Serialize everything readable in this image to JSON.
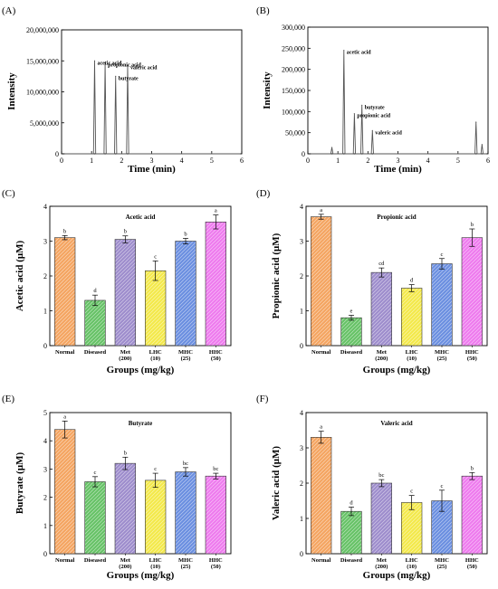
{
  "figure": {
    "panels": [
      {
        "letter": "(A)",
        "chart_data": {
          "type": "line",
          "xlabel": "Time (min)",
          "ylabel": "Intensity",
          "xlim": [
            0,
            6
          ],
          "ylim": [
            0,
            20000000
          ],
          "xticks": [
            0,
            1,
            2,
            3,
            4,
            5,
            6
          ],
          "yticks": [
            0,
            5000000,
            10000000,
            15000000,
            20000000
          ],
          "ytick_labels": [
            "0",
            "5,000,000",
            "10,000,000",
            "15,000,000",
            "20,000,000"
          ],
          "series": [
            {
              "peaks": [
                {
                  "x": 1.1,
                  "y": 15000000,
                  "label": "acetic acid"
                },
                {
                  "x": 1.45,
                  "y": 14700000,
                  "label": "propionic acid"
                },
                {
                  "x": 1.8,
                  "y": 12500000,
                  "label": "butyrate"
                },
                {
                  "x": 2.2,
                  "y": 14200000,
                  "label": "valeric acid"
                }
              ]
            }
          ]
        }
      },
      {
        "letter": "(B)",
        "chart_data": {
          "type": "line",
          "xlabel": "Time (min)",
          "ylabel": "Intensity",
          "xlim": [
            0,
            6
          ],
          "ylim": [
            0,
            300000
          ],
          "xticks": [
            0,
            1,
            2,
            3,
            4,
            5,
            6
          ],
          "yticks": [
            0,
            50000,
            100000,
            150000,
            200000,
            250000,
            300000
          ],
          "ytick_labels": [
            "0",
            "50,000",
            "100,000",
            "150,000",
            "200,000",
            "250,000",
            "300,000"
          ],
          "series": [
            {
              "peaks": [
                {
                  "x": 0.8,
                  "y": 15000,
                  "label": ""
                },
                {
                  "x": 1.2,
                  "y": 245000,
                  "label": "acetic acid"
                },
                {
                  "x": 1.55,
                  "y": 95000,
                  "label": "propionic acid"
                },
                {
                  "x": 1.8,
                  "y": 115000,
                  "label": "butyrate"
                },
                {
                  "x": 2.15,
                  "y": 55000,
                  "label": "valeric acid"
                },
                {
                  "x": 5.6,
                  "y": 75000,
                  "label": ""
                },
                {
                  "x": 5.8,
                  "y": 22000,
                  "label": ""
                }
              ]
            }
          ]
        }
      },
      {
        "letter": "(C)",
        "chart_data": {
          "type": "bar",
          "title": "Acetic acid",
          "xlabel": "Groups (mg/kg)",
          "ylabel": "Acetic acid (μM)",
          "ylim": [
            0,
            4
          ],
          "yticks": [
            0,
            1,
            2,
            3,
            4
          ],
          "categories": [
            [
              "Normal"
            ],
            [
              "Diseased"
            ],
            [
              "Met",
              "(200)"
            ],
            [
              "LHC",
              "(10)"
            ],
            [
              "MHC",
              "(25)"
            ],
            [
              "HHC",
              "(50)"
            ]
          ],
          "values": [
            3.1,
            1.3,
            3.05,
            2.15,
            3.0,
            3.55
          ],
          "errors": [
            0.06,
            0.15,
            0.1,
            0.28,
            0.08,
            0.2
          ],
          "letters": [
            "b",
            "d",
            "b",
            "c",
            "b",
            "a"
          ]
        }
      },
      {
        "letter": "(D)",
        "chart_data": {
          "type": "bar",
          "title": "Propionic acid",
          "xlabel": "Groups (mg/kg)",
          "ylabel": "Propionic acid (μM)",
          "ylim": [
            0,
            4
          ],
          "yticks": [
            0,
            1,
            2,
            3,
            4
          ],
          "categories": [
            [
              "Normal"
            ],
            [
              "Diseased"
            ],
            [
              "Met",
              "(200)"
            ],
            [
              "LHC",
              "(10)"
            ],
            [
              "MHC",
              "(25)"
            ],
            [
              "HHC",
              "(50)"
            ]
          ],
          "values": [
            3.7,
            0.8,
            2.1,
            1.65,
            2.35,
            3.1
          ],
          "errors": [
            0.07,
            0.07,
            0.13,
            0.1,
            0.15,
            0.25
          ],
          "letters": [
            "a",
            "e",
            "cd",
            "d",
            "c",
            "b"
          ]
        }
      },
      {
        "letter": "(E)",
        "chart_data": {
          "type": "bar",
          "title": "Butyrate",
          "xlabel": "Groups (mg/kg)",
          "ylabel": "Butyrate (μM)",
          "ylim": [
            0,
            5
          ],
          "yticks": [
            0,
            1,
            2,
            3,
            4,
            5
          ],
          "categories": [
            [
              "Normal"
            ],
            [
              "Diseased"
            ],
            [
              "Met",
              "(200)"
            ],
            [
              "LHC",
              "(10)"
            ],
            [
              "MHC",
              "(25)"
            ],
            [
              "HHC",
              "(50)"
            ]
          ],
          "values": [
            4.4,
            2.55,
            3.2,
            2.6,
            2.9,
            2.75
          ],
          "errors": [
            0.3,
            0.18,
            0.22,
            0.25,
            0.15,
            0.1
          ],
          "letters": [
            "a",
            "c",
            "b",
            "c",
            "bc",
            "bc"
          ]
        }
      },
      {
        "letter": "(F)",
        "chart_data": {
          "type": "bar",
          "title": "Valeric acid",
          "xlabel": "Groups (mg/kg)",
          "ylabel": "Valeric acid (μM)",
          "ylim": [
            0,
            4
          ],
          "yticks": [
            0,
            1,
            2,
            3,
            4
          ],
          "categories": [
            [
              "Normal"
            ],
            [
              "Diseased"
            ],
            [
              "Met",
              "(200)"
            ],
            [
              "LHC",
              "(10)"
            ],
            [
              "MHC",
              "(25)"
            ],
            [
              "HHC",
              "(50)"
            ]
          ],
          "values": [
            3.3,
            1.2,
            2.0,
            1.45,
            1.5,
            2.2
          ],
          "errors": [
            0.17,
            0.12,
            0.1,
            0.2,
            0.3,
            0.1
          ],
          "letters": [
            "a",
            "d",
            "bc",
            "c",
            "c",
            "b"
          ]
        }
      }
    ],
    "colors": {
      "Normal": "#f4a460",
      "Diseased": "#66c266",
      "Met": "#9d8ccc",
      "LHC": "#f3e94a",
      "MHC": "#6a8ee0",
      "HHC": "#ee7aee",
      "trace": "#555555",
      "axis": "#000000"
    }
  }
}
